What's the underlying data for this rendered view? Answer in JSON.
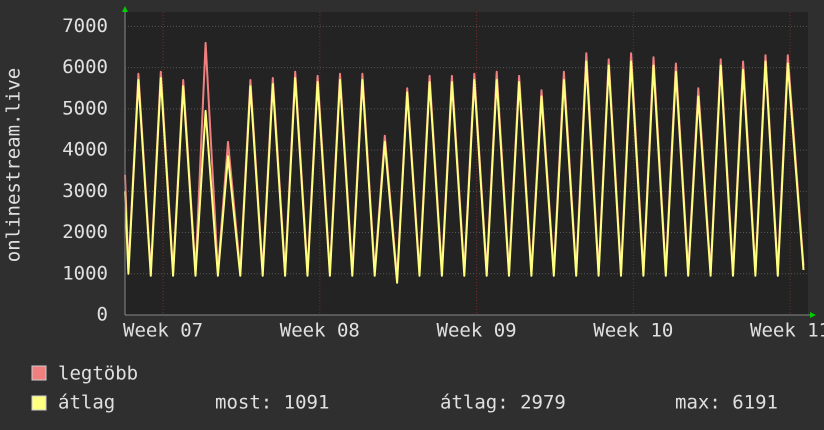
{
  "chart_data": {
    "type": "line",
    "y_label": "onlinestream.live",
    "xlim": [
      0,
      30.5
    ],
    "xticks": [
      {
        "value": 1.7,
        "label": "Week 07"
      },
      {
        "value": 8.7,
        "label": "Week 08"
      },
      {
        "value": 15.7,
        "label": "Week 09"
      },
      {
        "value": 22.7,
        "label": "Week 10"
      },
      {
        "value": 29.7,
        "label": "Week 11"
      }
    ],
    "ylim": [
      0,
      7350
    ],
    "yticks": [
      0,
      1000,
      2000,
      3000,
      4000,
      5000,
      6000,
      7000
    ],
    "grid": true,
    "x": [
      0,
      0.15,
      0.6,
      1.15,
      1.6,
      2.15,
      2.6,
      3.15,
      3.6,
      4.15,
      4.6,
      5.15,
      5.6,
      6.15,
      6.6,
      7.15,
      7.6,
      8.15,
      8.6,
      9.15,
      9.6,
      10.15,
      10.6,
      11.15,
      11.6,
      12.15,
      12.6,
      13.15,
      13.6,
      14.15,
      14.6,
      15.15,
      15.6,
      16.15,
      16.6,
      17.15,
      17.6,
      18.15,
      18.6,
      19.15,
      19.6,
      20.15,
      20.6,
      21.15,
      21.6,
      22.15,
      22.6,
      23.15,
      23.6,
      24.15,
      24.6,
      25.15,
      25.6,
      26.15,
      26.6,
      27.15,
      27.6,
      28.15,
      28.6,
      29.15,
      29.6,
      30.3
    ],
    "series": [
      {
        "name": "legtöbb",
        "color": "#f08080",
        "values": [
          3400,
          1100,
          5850,
          1050,
          5900,
          1050,
          5700,
          1050,
          6600,
          1050,
          4200,
          1050,
          5700,
          1050,
          5750,
          1050,
          5900,
          1050,
          5800,
          1050,
          5850,
          1050,
          5850,
          1050,
          4350,
          900,
          5500,
          1050,
          5800,
          1050,
          5800,
          1050,
          5850,
          1050,
          5900,
          1050,
          5800,
          1050,
          5450,
          1050,
          5900,
          1050,
          6350,
          1050,
          6200,
          1050,
          6350,
          1050,
          6250,
          1050,
          6100,
          1050,
          5500,
          1050,
          6200,
          1050,
          6150,
          1050,
          6300,
          1050,
          6300,
          1200
        ]
      },
      {
        "name": "átlag",
        "color": "#ffff80",
        "values": [
          3000,
          1000,
          5700,
          950,
          5750,
          950,
          5550,
          950,
          4950,
          950,
          3850,
          950,
          5550,
          950,
          5600,
          950,
          5750,
          950,
          5650,
          950,
          5700,
          950,
          5700,
          950,
          4200,
          780,
          5400,
          950,
          5650,
          950,
          5650,
          950,
          5700,
          950,
          5700,
          950,
          5650,
          950,
          5300,
          950,
          5700,
          950,
          6150,
          950,
          6050,
          950,
          6150,
          950,
          6050,
          950,
          5900,
          950,
          5300,
          950,
          6050,
          950,
          5950,
          950,
          6150,
          950,
          6100,
          1091
        ]
      }
    ],
    "stats": [
      "most: 1091",
      "átlag: 2979",
      "max: 6191"
    ]
  }
}
